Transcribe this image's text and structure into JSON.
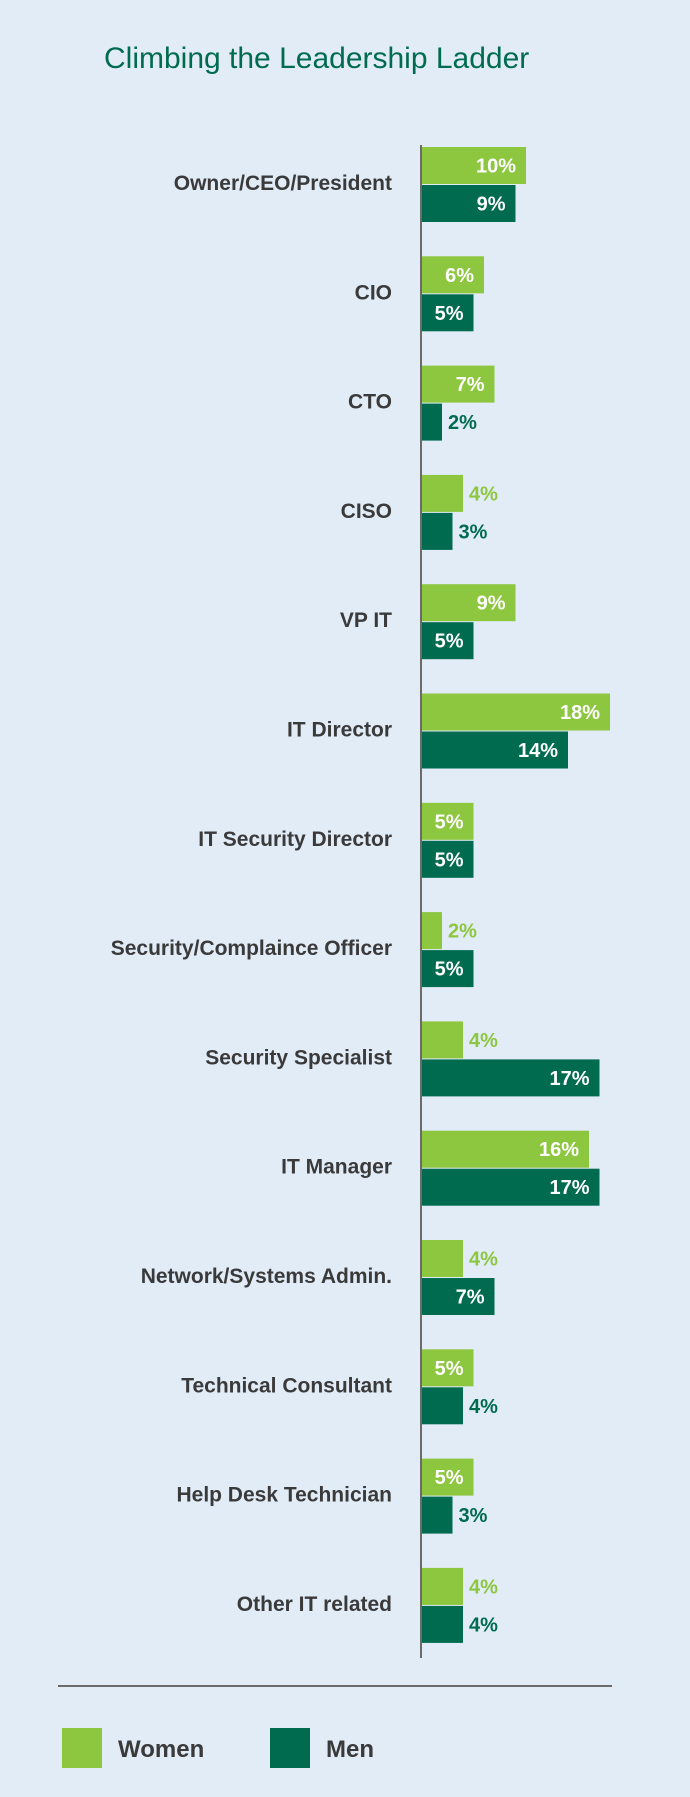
{
  "colors": {
    "background": "#e1ecf7",
    "women": "#8dc63f",
    "men": "#006b4f",
    "title": "#006b4f",
    "axis": "#6b6b6b",
    "label": "#3a3a3a"
  },
  "chart_data": {
    "type": "bar",
    "orientation": "horizontal",
    "title": "Climbing the Leadership Ladder",
    "xlabel": "",
    "ylabel": "",
    "xlim": [
      0,
      18
    ],
    "grid": false,
    "legend": {
      "position": "bottom-left"
    },
    "value_format": "percent",
    "categories": [
      "Owner/CEO/President",
      "CIO",
      "CTO",
      "CISO",
      "VP IT",
      "IT Director",
      "IT Security Director",
      "Security/Complaince Officer",
      "Security Specialist",
      "IT Manager",
      "Network/Systems Admin.",
      "Technical Consultant",
      "Help Desk Technician",
      "Other IT related"
    ],
    "series": [
      {
        "name": "Women",
        "values": [
          10,
          6,
          7,
          4,
          9,
          18,
          5,
          2,
          4,
          16,
          4,
          5,
          5,
          4
        ]
      },
      {
        "name": "Men",
        "values": [
          9,
          5,
          2,
          3,
          5,
          14,
          5,
          5,
          17,
          17,
          7,
          4,
          3,
          4
        ]
      }
    ]
  }
}
